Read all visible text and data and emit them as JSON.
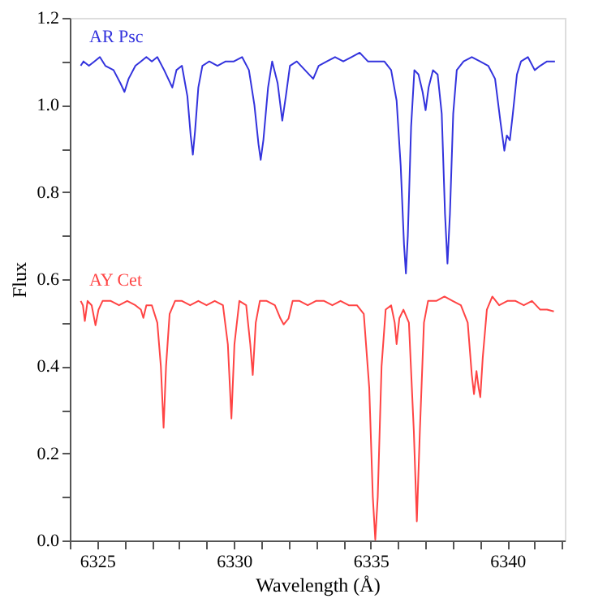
{
  "chart_data": {
    "type": "line",
    "xlabel": "Wavelength (Å)",
    "ylabel": "Flux",
    "xlim": [
      6324.0,
      6342.1
    ],
    "ylim": [
      0,
      1.2
    ],
    "xticks": [
      {
        "value": 6324,
        "label": null
      },
      6325,
      {
        "value": 6326,
        "label": null
      },
      {
        "value": 6327,
        "label": null
      },
      {
        "value": 6328,
        "label": null
      },
      {
        "value": 6329,
        "label": null
      },
      6330,
      {
        "value": 6331,
        "label": null
      },
      {
        "value": 6332,
        "label": null
      },
      {
        "value": 6333,
        "label": null
      },
      {
        "value": 6334,
        "label": null
      },
      6335,
      {
        "value": 6336,
        "label": null
      },
      {
        "value": 6337,
        "label": null
      },
      {
        "value": 6338,
        "label": null
      },
      {
        "value": 6339,
        "label": null
      },
      6340,
      {
        "value": 6341,
        "label": null
      },
      {
        "value": 6342,
        "label": null
      }
    ],
    "yticks": [
      {
        "value": 0,
        "label": "0.0"
      },
      {
        "value": 0.1,
        "label": null
      },
      {
        "value": 0.2,
        "label": "0.2"
      },
      {
        "value": 0.3,
        "label": null
      },
      {
        "value": 0.4,
        "label": "0.4"
      },
      {
        "value": 0.5,
        "label": null
      },
      {
        "value": 0.6,
        "label": "0.6"
      },
      {
        "value": 0.7,
        "label": null
      },
      {
        "value": 0.8,
        "label": "0.8"
      },
      {
        "value": 0.9,
        "label": null
      },
      {
        "value": 1.0,
        "label": "1.0"
      },
      {
        "value": 1.1,
        "label": null
      },
      {
        "value": 1.2,
        "label": "1.2"
      }
    ],
    "grid": false,
    "legend": false,
    "marker": "none",
    "line_style": "solid",
    "series": [
      {
        "name": "AR Psc",
        "color": "#3333dd",
        "x": [
          6324.4,
          6324.5,
          6324.7,
          6324.9,
          6325.1,
          6325.3,
          6325.6,
          6325.85,
          6326.0,
          6326.15,
          6326.4,
          6326.6,
          6326.8,
          6327.0,
          6327.2,
          6327.45,
          6327.6,
          6327.75,
          6327.9,
          6328.1,
          6328.3,
          6328.42,
          6328.5,
          6328.58,
          6328.7,
          6328.85,
          6329.1,
          6329.4,
          6329.7,
          6330.0,
          6330.3,
          6330.55,
          6330.75,
          6330.9,
          6330.98,
          6331.08,
          6331.25,
          6331.4,
          6331.6,
          6331.77,
          6331.9,
          6332.05,
          6332.3,
          6332.6,
          6332.9,
          6333.1,
          6333.4,
          6333.7,
          6334.0,
          6334.3,
          6334.6,
          6334.9,
          6335.2,
          6335.5,
          6335.75,
          6335.95,
          6336.1,
          6336.22,
          6336.29,
          6336.36,
          6336.48,
          6336.6,
          6336.75,
          6336.9,
          6337.01,
          6337.12,
          6337.28,
          6337.45,
          6337.6,
          6337.72,
          6337.81,
          6337.9,
          6338.02,
          6338.15,
          6338.4,
          6338.7,
          6339.0,
          6339.3,
          6339.55,
          6339.75,
          6339.89,
          6339.98,
          6340.09,
          6340.2,
          6340.35,
          6340.5,
          6340.75,
          6341.0,
          6341.2,
          6341.45,
          6341.74
        ],
        "values": [
          1.09,
          1.1,
          1.09,
          1.1,
          1.11,
          1.09,
          1.08,
          1.05,
          1.03,
          1.06,
          1.09,
          1.1,
          1.11,
          1.1,
          1.11,
          1.08,
          1.06,
          1.04,
          1.08,
          1.09,
          1.02,
          0.93,
          0.886,
          0.94,
          1.04,
          1.09,
          1.1,
          1.09,
          1.1,
          1.1,
          1.11,
          1.08,
          1.0,
          0.91,
          0.874,
          0.92,
          1.04,
          1.1,
          1.05,
          0.964,
          1.02,
          1.09,
          1.1,
          1.08,
          1.06,
          1.09,
          1.1,
          1.11,
          1.1,
          1.11,
          1.12,
          1.1,
          1.1,
          1.1,
          1.08,
          1.01,
          0.86,
          0.68,
          0.613,
          0.7,
          0.95,
          1.08,
          1.07,
          1.03,
          0.988,
          1.04,
          1.08,
          1.07,
          0.98,
          0.75,
          0.636,
          0.75,
          0.98,
          1.08,
          1.1,
          1.11,
          1.1,
          1.09,
          1.06,
          0.96,
          0.895,
          0.93,
          0.919,
          0.98,
          1.07,
          1.1,
          1.11,
          1.08,
          1.09,
          1.1,
          1.1
        ]
      },
      {
        "name": "AY Cet",
        "color": "#ff4444",
        "x": [
          6324.4,
          6324.48,
          6324.55,
          6324.65,
          6324.8,
          6324.94,
          6325.05,
          6325.2,
          6325.5,
          6325.8,
          6326.1,
          6326.4,
          6326.6,
          6326.69,
          6326.8,
          6327.0,
          6327.2,
          6327.33,
          6327.43,
          6327.52,
          6327.65,
          6327.85,
          6328.1,
          6328.4,
          6328.7,
          6329.0,
          6329.3,
          6329.6,
          6329.78,
          6329.91,
          6330.02,
          6330.2,
          6330.45,
          6330.6,
          6330.69,
          6330.8,
          6330.95,
          6331.2,
          6331.5,
          6331.7,
          6331.82,
          6332.0,
          6332.15,
          6332.4,
          6332.7,
          6333.0,
          6333.3,
          6333.6,
          6333.9,
          6334.2,
          6334.5,
          6334.75,
          6334.95,
          6335.08,
          6335.17,
          6335.26,
          6335.4,
          6335.55,
          6335.75,
          6335.88,
          6335.95,
          6336.05,
          6336.2,
          6336.4,
          6336.58,
          6336.69,
          6336.8,
          6336.95,
          6337.1,
          6337.4,
          6337.7,
          6338.0,
          6338.3,
          6338.55,
          6338.7,
          6338.78,
          6338.87,
          6338.95,
          6339.01,
          6339.1,
          6339.25,
          6339.45,
          6339.7,
          6340.0,
          6340.3,
          6340.6,
          6340.9,
          6341.2,
          6341.45,
          6341.7
        ],
        "values": [
          0.55,
          0.54,
          0.504,
          0.55,
          0.54,
          0.494,
          0.53,
          0.55,
          0.55,
          0.54,
          0.55,
          0.54,
          0.53,
          0.511,
          0.54,
          0.54,
          0.5,
          0.4,
          0.259,
          0.4,
          0.52,
          0.55,
          0.55,
          0.54,
          0.55,
          0.54,
          0.55,
          0.54,
          0.45,
          0.28,
          0.45,
          0.55,
          0.54,
          0.45,
          0.38,
          0.5,
          0.55,
          0.55,
          0.54,
          0.51,
          0.496,
          0.51,
          0.55,
          0.55,
          0.54,
          0.55,
          0.55,
          0.54,
          0.55,
          0.54,
          0.54,
          0.52,
          0.35,
          0.1,
          0.002,
          0.1,
          0.4,
          0.53,
          0.54,
          0.5,
          0.451,
          0.51,
          0.53,
          0.5,
          0.25,
          0.044,
          0.25,
          0.5,
          0.55,
          0.55,
          0.56,
          0.55,
          0.54,
          0.5,
          0.38,
          0.336,
          0.389,
          0.35,
          0.329,
          0.42,
          0.53,
          0.56,
          0.54,
          0.55,
          0.55,
          0.54,
          0.55,
          0.53,
          0.53,
          0.526
        ]
      }
    ]
  }
}
